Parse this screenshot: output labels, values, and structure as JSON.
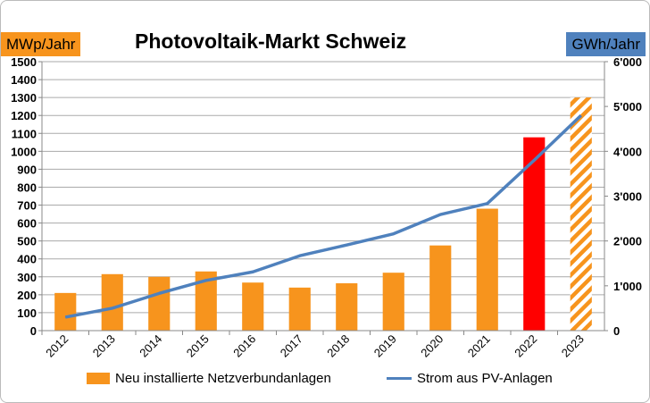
{
  "chart_data": {
    "type": "bar+line",
    "title": "Photovoltaik-Markt Schweiz",
    "ylabel_left": "MWp/Jahr",
    "ylabel_right": "GWh/Jahr",
    "categories": [
      "2012",
      "2013",
      "2014",
      "2015",
      "2016",
      "2017",
      "2018",
      "2019",
      "2020",
      "2021",
      "2022",
      "2023"
    ],
    "ylim_left": [
      0,
      1500
    ],
    "yticks_left": [
      "0",
      "100",
      "200",
      "300",
      "400",
      "500",
      "600",
      "700",
      "800",
      "900",
      "1000",
      "1100",
      "1200",
      "1300",
      "1400",
      "1500"
    ],
    "ylim_right": [
      0,
      6000
    ],
    "yticks_right": [
      "0",
      "1'000",
      "2'000",
      "3'000",
      "4'000",
      "5'000",
      "6'000"
    ],
    "grid": true,
    "legend": "bottom",
    "series": [
      {
        "name": "Neu installierte Netzverbundanlagen",
        "type": "bar",
        "axis": "left",
        "color": "#f7941d",
        "values": [
          210,
          315,
          300,
          330,
          268,
          240,
          264,
          323,
          475,
          680,
          1078,
          1300
        ],
        "bar_styles": [
          "solid",
          "solid",
          "solid",
          "solid",
          "solid",
          "solid",
          "solid",
          "solid",
          "solid",
          "solid",
          "red",
          "hatched"
        ]
      },
      {
        "name": "Strom aus PV-Anlagen",
        "type": "line",
        "axis": "right",
        "color": "#4f81bd",
        "values": [
          300,
          500,
          830,
          1120,
          1310,
          1670,
          1910,
          2160,
          2590,
          2835,
          3800,
          4800
        ]
      }
    ],
    "colors": {
      "highlight": "#ff0000",
      "bar": "#f7941d",
      "line": "#4f81bd"
    }
  }
}
